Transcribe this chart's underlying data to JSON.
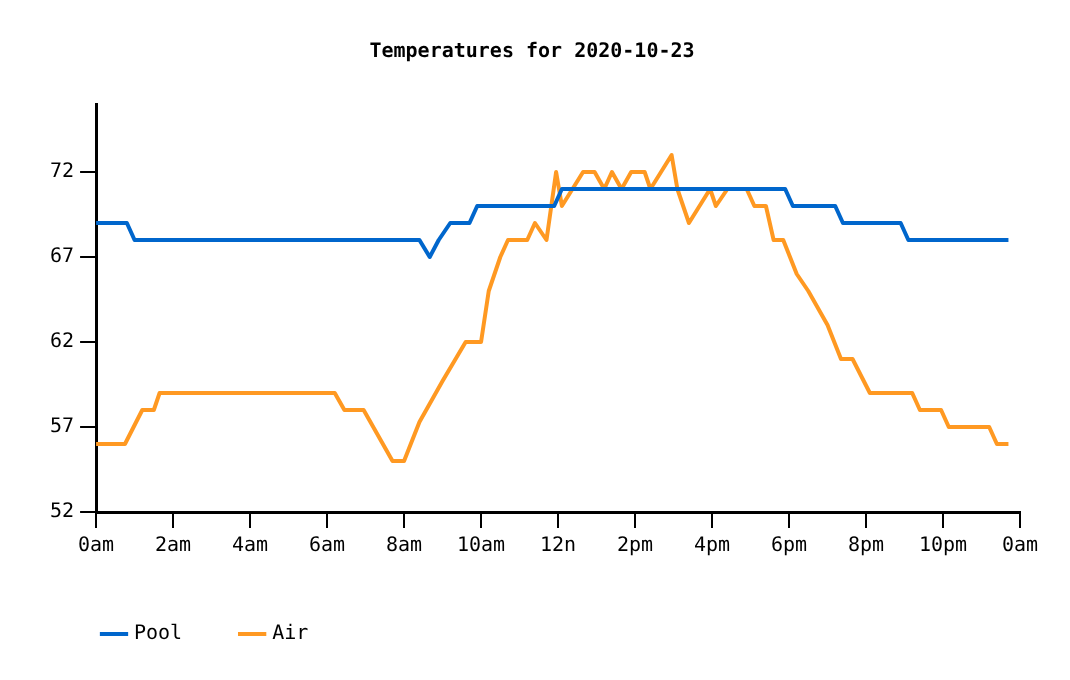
{
  "chart_data": {
    "type": "line",
    "title": "Temperatures for 2020-10-23",
    "xlim": [
      "2020-10-23T00:00",
      "2020-10-24T00:00"
    ],
    "ylim": [
      52,
      76
    ],
    "xticks": [
      {
        "value": "2020-10-23T00:00",
        "label": "0am"
      },
      {
        "value": "2020-10-23T02:00",
        "label": "2am"
      },
      {
        "value": "2020-10-23T04:00",
        "label": "4am"
      },
      {
        "value": "2020-10-23T06:00",
        "label": "6am"
      },
      {
        "value": "2020-10-23T08:00",
        "label": "8am"
      },
      {
        "value": "2020-10-23T10:00",
        "label": "10am"
      },
      {
        "value": "2020-10-23T12:00",
        "label": "12n"
      },
      {
        "value": "2020-10-23T14:00",
        "label": "2pm"
      },
      {
        "value": "2020-10-23T16:00",
        "label": "4pm"
      },
      {
        "value": "2020-10-23T18:00",
        "label": "6pm"
      },
      {
        "value": "2020-10-23T20:00",
        "label": "8pm"
      },
      {
        "value": "2020-10-23T22:00",
        "label": "10pm"
      },
      {
        "value": "2020-10-24T00:00",
        "label": "0am"
      }
    ],
    "yticks": [
      52,
      57,
      62,
      67,
      72
    ],
    "grid": false,
    "legend": "bottom left",
    "marker": "none",
    "line_style": "solid",
    "series": [
      {
        "name": "Pool",
        "color": "#0066cc",
        "x": [
          "2020-10-23T00:00",
          "2020-10-23T00:48",
          "2020-10-23T01:00",
          "2020-10-23T08:24",
          "2020-10-23T08:40",
          "2020-10-23T08:54",
          "2020-10-23T09:12",
          "2020-10-23T09:42",
          "2020-10-23T09:54",
          "2020-10-23T11:54",
          "2020-10-23T12:06",
          "2020-10-23T17:54",
          "2020-10-23T18:06",
          "2020-10-23T19:12",
          "2020-10-23T19:24",
          "2020-10-23T20:54",
          "2020-10-23T21:06",
          "2020-10-23T23:42"
        ],
        "values": [
          69,
          69,
          68,
          68,
          67,
          68,
          69,
          69,
          70,
          70,
          71,
          71,
          70,
          70,
          69,
          69,
          68,
          68
        ]
      },
      {
        "name": "Air",
        "color": "#ff9922",
        "x": [
          "2020-10-23T00:00",
          "2020-10-23T00:45",
          "2020-10-23T01:12",
          "2020-10-23T01:30",
          "2020-10-23T01:39",
          "2020-10-23T06:12",
          "2020-10-23T06:27",
          "2020-10-23T06:57",
          "2020-10-23T07:42",
          "2020-10-23T08:00",
          "2020-10-23T08:24",
          "2020-10-23T09:00",
          "2020-10-23T09:36",
          "2020-10-23T10:00",
          "2020-10-23T10:12",
          "2020-10-23T10:30",
          "2020-10-23T10:42",
          "2020-10-23T11:12",
          "2020-10-23T11:24",
          "2020-10-23T11:42",
          "2020-10-23T11:57",
          "2020-10-23T12:06",
          "2020-10-23T12:39",
          "2020-10-23T12:57",
          "2020-10-23T13:12",
          "2020-10-23T13:24",
          "2020-10-23T13:39",
          "2020-10-23T13:54",
          "2020-10-23T14:15",
          "2020-10-23T14:24",
          "2020-10-23T14:57",
          "2020-10-23T15:06",
          "2020-10-23T15:24",
          "2020-10-23T15:57",
          "2020-10-23T16:06",
          "2020-10-23T16:24",
          "2020-10-23T16:54",
          "2020-10-23T17:06",
          "2020-10-23T17:24",
          "2020-10-23T17:36",
          "2020-10-23T17:51",
          "2020-10-23T18:12",
          "2020-10-23T18:30",
          "2020-10-23T19:00",
          "2020-10-23T19:21",
          "2020-10-23T19:39",
          "2020-10-23T20:06",
          "2020-10-23T21:12",
          "2020-10-23T21:24",
          "2020-10-23T21:57",
          "2020-10-23T22:09",
          "2020-10-23T23:12",
          "2020-10-23T23:24",
          "2020-10-23T23:42"
        ],
        "values": [
          56,
          56,
          58,
          58,
          59,
          59,
          58,
          58,
          55,
          55,
          57.3,
          59.7,
          62,
          62,
          65,
          67,
          68,
          68,
          69,
          68,
          72,
          70,
          72,
          72,
          71,
          72,
          71,
          72,
          72,
          71,
          73,
          71,
          69,
          71,
          70,
          71,
          71,
          70,
          70,
          68,
          68,
          66,
          65,
          63,
          61,
          61,
          59,
          59,
          58,
          58,
          57,
          57,
          56,
          56
        ]
      }
    ]
  }
}
